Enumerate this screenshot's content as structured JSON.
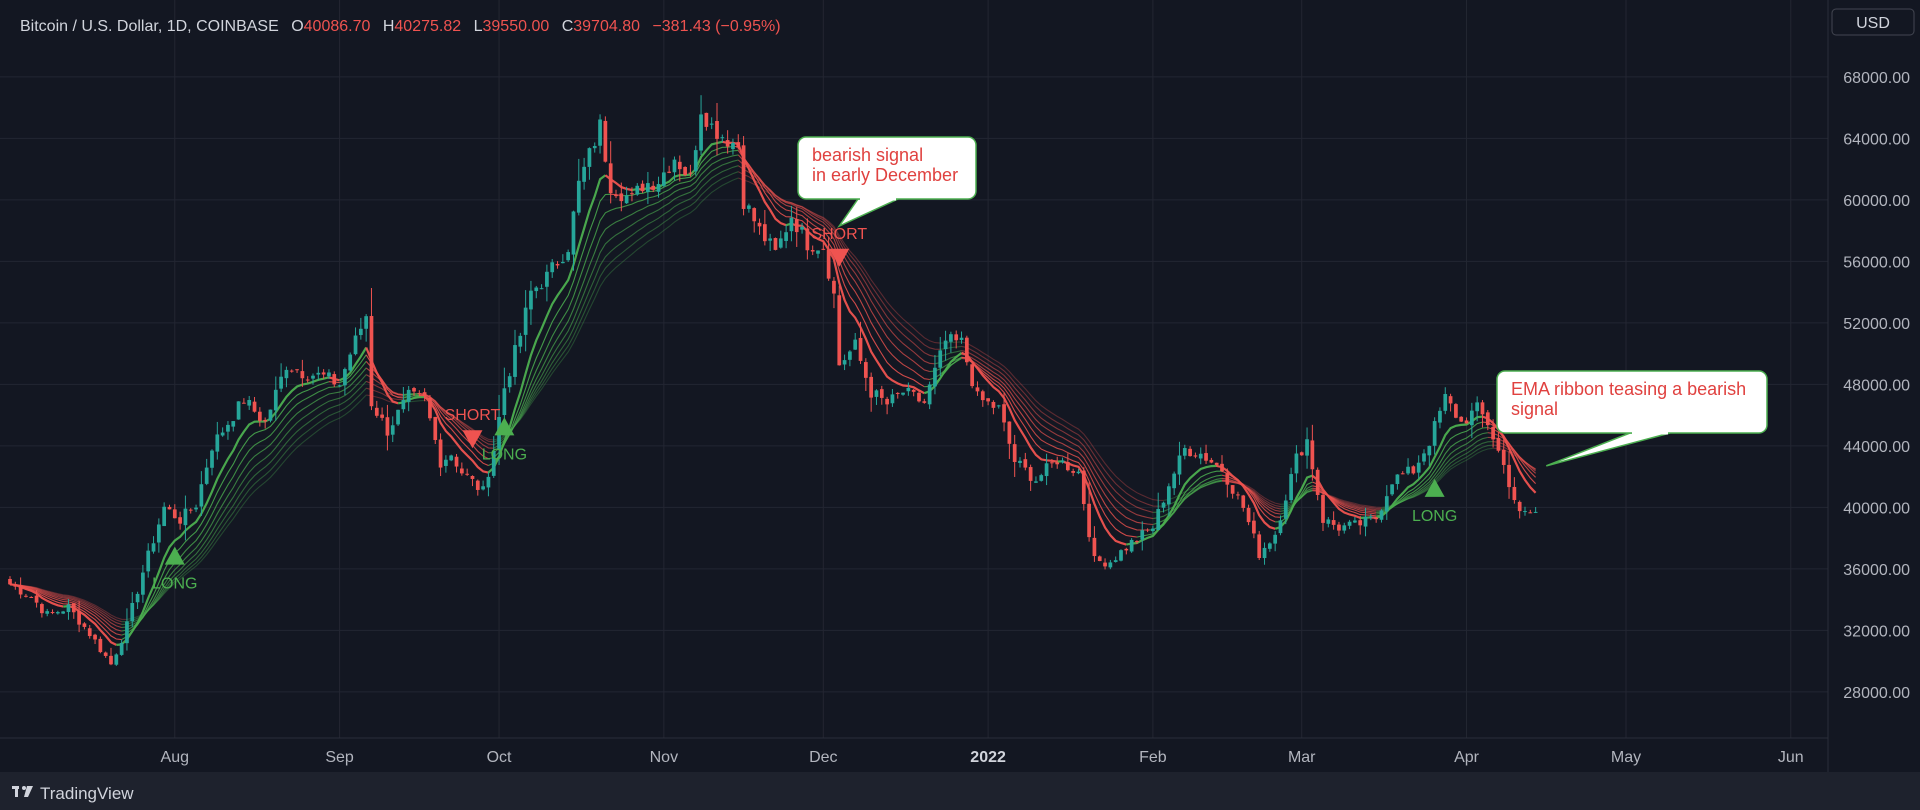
{
  "header": {
    "symbol": "Bitcoin / U.S. Dollar, 1D, COINBASE",
    "o_label": "O",
    "o_value": "40086.70",
    "h_label": "H",
    "h_value": "40275.82",
    "l_label": "L",
    "l_value": "39550.00",
    "c_label": "C",
    "c_value": "39704.80",
    "change": "−381.43 (−0.95%)"
  },
  "currency_button": "USD",
  "footer": {
    "brand": "TradingView"
  },
  "colors": {
    "background": "#131722",
    "bull": "#26a69a",
    "bear": "#ef5350",
    "ema_green": "#4caf50",
    "ema_red": "#ef5350",
    "text": "#b2b5be"
  },
  "chart_data": {
    "type": "candlestick",
    "interval": "1D",
    "x_range": [
      "2021-07-01",
      "2022-06-08"
    ],
    "ylim": [
      25000,
      73000
    ],
    "y_ticks": [
      "28000.00",
      "32000.00",
      "36000.00",
      "40000.00",
      "44000.00",
      "48000.00",
      "52000.00",
      "56000.00",
      "60000.00",
      "64000.00",
      "68000.00"
    ],
    "x_ticks": [
      {
        "date": "2021-08-01",
        "label": "Aug"
      },
      {
        "date": "2021-09-01",
        "label": "Sep"
      },
      {
        "date": "2021-10-01",
        "label": "Oct"
      },
      {
        "date": "2021-11-01",
        "label": "Nov"
      },
      {
        "date": "2021-12-01",
        "label": "Dec"
      },
      {
        "date": "2022-01-01",
        "label": "2022",
        "bold": true
      },
      {
        "date": "2022-02-01",
        "label": "Feb"
      },
      {
        "date": "2022-03-01",
        "label": "Mar"
      },
      {
        "date": "2022-04-01",
        "label": "Apr"
      },
      {
        "date": "2022-05-01",
        "label": "May"
      },
      {
        "date": "2022-06-01",
        "label": "Jun"
      }
    ],
    "close_path": [
      [
        "2021-07-01",
        35000
      ],
      [
        "2021-07-05",
        34200
      ],
      [
        "2021-07-08",
        33000
      ],
      [
        "2021-07-12",
        33500
      ],
      [
        "2021-07-16",
        31800
      ],
      [
        "2021-07-20",
        29800
      ],
      [
        "2021-07-23",
        32300
      ],
      [
        "2021-07-26",
        35800
      ],
      [
        "2021-07-30",
        40000
      ],
      [
        "2021-08-02",
        39200
      ],
      [
        "2021-08-05",
        40200
      ],
      [
        "2021-08-08",
        44000
      ],
      [
        "2021-08-11",
        45500
      ],
      [
        "2021-08-14",
        47000
      ],
      [
        "2021-08-18",
        45500
      ],
      [
        "2021-08-22",
        49300
      ],
      [
        "2021-08-25",
        48800
      ],
      [
        "2021-08-29",
        48500
      ],
      [
        "2021-09-01",
        48000
      ],
      [
        "2021-09-03",
        50000
      ],
      [
        "2021-09-06",
        52500
      ],
      [
        "2021-09-07",
        46800
      ],
      [
        "2021-09-10",
        45000
      ],
      [
        "2021-09-14",
        47200
      ],
      [
        "2021-09-17",
        47000
      ],
      [
        "2021-09-20",
        43000
      ],
      [
        "2021-09-22",
        43500
      ],
      [
        "2021-09-24",
        42300
      ],
      [
        "2021-09-28",
        41000
      ],
      [
        "2021-09-30",
        43800
      ],
      [
        "2021-10-02",
        47800
      ],
      [
        "2021-10-05",
        51200
      ],
      [
        "2021-10-07",
        54000
      ],
      [
        "2021-10-10",
        55000
      ],
      [
        "2021-10-14",
        57000
      ],
      [
        "2021-10-16",
        61000
      ],
      [
        "2021-10-20",
        64800
      ],
      [
        "2021-10-22",
        61000
      ],
      [
        "2021-10-26",
        60000
      ],
      [
        "2021-10-28",
        61000
      ],
      [
        "2021-10-31",
        61300
      ],
      [
        "2021-11-03",
        62800
      ],
      [
        "2021-11-06",
        61400
      ],
      [
        "2021-11-08",
        66000
      ],
      [
        "2021-11-10",
        64800
      ],
      [
        "2021-11-12",
        64200
      ],
      [
        "2021-11-15",
        63500
      ],
      [
        "2021-11-16",
        60000
      ],
      [
        "2021-11-19",
        58000
      ],
      [
        "2021-11-22",
        56500
      ],
      [
        "2021-11-25",
        59000
      ],
      [
        "2021-11-28",
        57200
      ],
      [
        "2021-12-01",
        57000
      ],
      [
        "2021-12-03",
        53800
      ],
      [
        "2021-12-04",
        49300
      ],
      [
        "2021-12-07",
        50500
      ],
      [
        "2021-12-10",
        47500
      ],
      [
        "2021-12-13",
        46700
      ],
      [
        "2021-12-16",
        47500
      ],
      [
        "2021-12-20",
        46800
      ],
      [
        "2021-12-24",
        50800
      ],
      [
        "2021-12-27",
        50700
      ],
      [
        "2021-12-30",
        47100
      ],
      [
        "2022-01-03",
        46400
      ],
      [
        "2022-01-06",
        43000
      ],
      [
        "2022-01-10",
        41800
      ],
      [
        "2022-01-14",
        43100
      ],
      [
        "2022-01-18",
        42300
      ],
      [
        "2022-01-21",
        36500
      ],
      [
        "2022-01-24",
        36500
      ],
      [
        "2022-01-28",
        37700
      ],
      [
        "2022-02-01",
        38700
      ],
      [
        "2022-02-04",
        41500
      ],
      [
        "2022-02-07",
        43800
      ],
      [
        "2022-02-10",
        43500
      ],
      [
        "2022-02-14",
        42500
      ],
      [
        "2022-02-18",
        40000
      ],
      [
        "2022-02-21",
        37000
      ],
      [
        "2022-02-24",
        38300
      ],
      [
        "2022-02-28",
        43200
      ],
      [
        "2022-03-02",
        44400
      ],
      [
        "2022-03-05",
        39200
      ],
      [
        "2022-03-08",
        38700
      ],
      [
        "2022-03-11",
        38800
      ],
      [
        "2022-03-15",
        39300
      ],
      [
        "2022-03-18",
        41800
      ],
      [
        "2022-03-22",
        42400
      ],
      [
        "2022-03-25",
        44300
      ],
      [
        "2022-03-28",
        47100
      ],
      [
        "2022-03-31",
        45500
      ],
      [
        "2022-04-03",
        46400
      ],
      [
        "2022-04-05",
        45500
      ],
      [
        "2022-04-08",
        42700
      ],
      [
        "2022-04-11",
        39500
      ],
      [
        "2022-04-14",
        39705
      ]
    ],
    "last_bar": {
      "date": "2022-04-14",
      "open": 40086.7,
      "high": 40275.82,
      "low": 39550.0,
      "close": 39704.8,
      "change": -381.43,
      "change_pct": -0.95
    },
    "indicator": "EMA ribbon",
    "signals": [
      {
        "date": "2021-08-01",
        "price": 36800,
        "type": "LONG"
      },
      {
        "date": "2021-09-26",
        "price": 44500,
        "type": "SHORT"
      },
      {
        "date": "2021-10-02",
        "price": 45200,
        "type": "LONG"
      },
      {
        "date": "2021-12-04",
        "price": 56300,
        "type": "SHORT"
      },
      {
        "date": "2022-03-26",
        "price": 41200,
        "type": "LONG"
      }
    ],
    "annotations": [
      {
        "text": "bearish signal\nin early December",
        "target_date": "2021-12-04",
        "target_price": 58300
      },
      {
        "text": "EMA ribbon teasing a bearish\nsignal",
        "target_date": "2022-04-16",
        "target_price": 42700
      }
    ]
  }
}
